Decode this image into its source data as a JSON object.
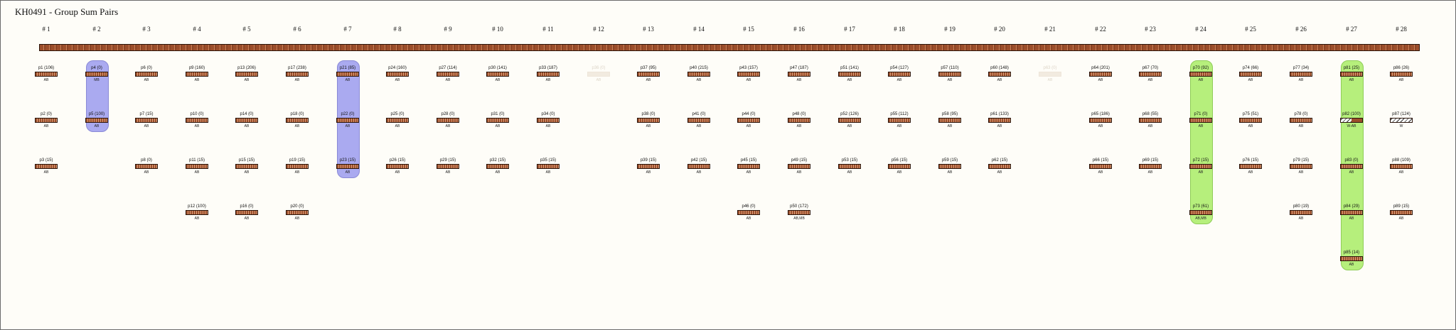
{
  "title": "KH0491 - Group Sum Pairs",
  "columns": [
    {
      "label": "# 1",
      "items": [
        {
          "label": "p1 (106)",
          "sub": "AB"
        },
        {
          "label": "p2 (0)",
          "sub": "AB"
        },
        {
          "label": "p3 (15)",
          "sub": "AB"
        }
      ]
    },
    {
      "label": "# 2",
      "items": [
        {
          "label": "p4 (0)",
          "sub": "MB"
        },
        {
          "label": "p5 (100)",
          "sub": "AB"
        }
      ],
      "highlight": "blue"
    },
    {
      "label": "# 3",
      "items": [
        {
          "label": "p6 (0)",
          "sub": "AB"
        },
        {
          "label": "p7 (15)",
          "sub": "AB"
        },
        {
          "label": "p8 (0)",
          "sub": "AB"
        }
      ]
    },
    {
      "label": "# 4",
      "items": [
        {
          "label": "p9 (160)",
          "sub": "AB"
        },
        {
          "label": "p10 (0)",
          "sub": "AB"
        },
        {
          "label": "p11 (15)",
          "sub": "AB"
        },
        {
          "label": "p12 (100)",
          "sub": "AB"
        }
      ]
    },
    {
      "label": "# 5",
      "items": [
        {
          "label": "p13 (206)",
          "sub": "AB"
        },
        {
          "label": "p14 (0)",
          "sub": "AB"
        },
        {
          "label": "p15 (15)",
          "sub": "AB"
        },
        {
          "label": "p16 (0)",
          "sub": "AB"
        }
      ]
    },
    {
      "label": "# 6",
      "items": [
        {
          "label": "p17 (238)",
          "sub": "AB"
        },
        {
          "label": "p18 (0)",
          "sub": "AB"
        },
        {
          "label": "p19 (15)",
          "sub": "AB"
        },
        {
          "label": "p20 (0)",
          "sub": "AB"
        }
      ]
    },
    {
      "label": "# 7",
      "items": [
        {
          "label": "p21 (85)",
          "sub": "AB"
        },
        {
          "label": "p22 (0)",
          "sub": "AB"
        },
        {
          "label": "p23 (15)",
          "sub": "AB"
        }
      ],
      "highlight": "blue"
    },
    {
      "label": "# 8",
      "items": [
        {
          "label": "p24 (160)",
          "sub": "AB"
        },
        {
          "label": "p25 (0)",
          "sub": "AB"
        },
        {
          "label": "p26 (15)",
          "sub": "AB"
        }
      ]
    },
    {
      "label": "# 9",
      "items": [
        {
          "label": "p27 (114)",
          "sub": "AB"
        },
        {
          "label": "p28 (0)",
          "sub": "AB"
        },
        {
          "label": "p29 (15)",
          "sub": "AB"
        }
      ]
    },
    {
      "label": "# 10",
      "items": [
        {
          "label": "p30 (141)",
          "sub": "AB"
        },
        {
          "label": "p31 (0)",
          "sub": "AB"
        },
        {
          "label": "p32 (15)",
          "sub": "AB"
        }
      ]
    },
    {
      "label": "# 11",
      "items": [
        {
          "label": "p33 (187)",
          "sub": "AB"
        },
        {
          "label": "p34 (0)",
          "sub": "AB"
        },
        {
          "label": "p35 (15)",
          "sub": "AB"
        }
      ]
    },
    {
      "label": "# 12",
      "items": [
        {
          "label": "p36 (0)",
          "sub": "AB",
          "faded": true
        }
      ]
    },
    {
      "label": "# 13",
      "items": [
        {
          "label": "p37 (95)",
          "sub": "AB"
        },
        {
          "label": "p38 (0)",
          "sub": "AB"
        },
        {
          "label": "p39 (15)",
          "sub": "AB"
        }
      ]
    },
    {
      "label": "# 14",
      "items": [
        {
          "label": "p40 (215)",
          "sub": "AB"
        },
        {
          "label": "p41 (0)",
          "sub": "AB"
        },
        {
          "label": "p42 (15)",
          "sub": "AB"
        }
      ]
    },
    {
      "label": "# 15",
      "items": [
        {
          "label": "p43 (157)",
          "sub": "AB"
        },
        {
          "label": "p44 (0)",
          "sub": "AB"
        },
        {
          "label": "p45 (15)",
          "sub": "AB"
        },
        {
          "label": "p46 (0)",
          "sub": "AB"
        }
      ]
    },
    {
      "label": "# 16",
      "items": [
        {
          "label": "p47 (187)",
          "sub": "AB"
        },
        {
          "label": "p48 (0)",
          "sub": "AB"
        },
        {
          "label": "p49 (15)",
          "sub": "AB"
        },
        {
          "label": "p50 (172)",
          "sub": "AB,MB"
        }
      ]
    },
    {
      "label": "# 17",
      "items": [
        {
          "label": "p51 (141)",
          "sub": "AB"
        },
        {
          "label": "p52 (126)",
          "sub": "AB"
        },
        {
          "label": "p53 (15)",
          "sub": "AB"
        }
      ]
    },
    {
      "label": "# 18",
      "items": [
        {
          "label": "p54 (127)",
          "sub": "AB"
        },
        {
          "label": "p55 (112)",
          "sub": "AB"
        },
        {
          "label": "p56 (15)",
          "sub": "AB"
        }
      ]
    },
    {
      "label": "# 19",
      "items": [
        {
          "label": "p57 (110)",
          "sub": "AB"
        },
        {
          "label": "p58 (95)",
          "sub": "AB"
        },
        {
          "label": "p59 (15)",
          "sub": "AB"
        }
      ]
    },
    {
      "label": "# 20",
      "items": [
        {
          "label": "p60 (148)",
          "sub": "AB"
        },
        {
          "label": "p61 (133)",
          "sub": "AB"
        },
        {
          "label": "p62 (15)",
          "sub": "AB"
        }
      ]
    },
    {
      "label": "# 21",
      "items": [
        {
          "label": "p63 (0)",
          "sub": "AB",
          "faded": true
        }
      ]
    },
    {
      "label": "# 22",
      "items": [
        {
          "label": "p64 (201)",
          "sub": "AB"
        },
        {
          "label": "p65 (186)",
          "sub": "AB"
        },
        {
          "label": "p66 (15)",
          "sub": "AB"
        }
      ]
    },
    {
      "label": "# 23",
      "items": [
        {
          "label": "p67 (70)",
          "sub": "AB"
        },
        {
          "label": "p68 (55)",
          "sub": "AB"
        },
        {
          "label": "p69 (15)",
          "sub": "AB"
        }
      ]
    },
    {
      "label": "# 24",
      "items": [
        {
          "label": "p70 (92)",
          "sub": "AB"
        },
        {
          "label": "p71 (0)",
          "sub": "AB"
        },
        {
          "label": "p72 (15)",
          "sub": "AB"
        },
        {
          "label": "p73 (61)",
          "sub": "AB,MB"
        }
      ],
      "highlight": "green"
    },
    {
      "label": "# 25",
      "items": [
        {
          "label": "p74 (66)",
          "sub": "AB"
        },
        {
          "label": "p75 (51)",
          "sub": "AB"
        },
        {
          "label": "p76 (15)",
          "sub": "AB"
        }
      ]
    },
    {
      "label": "# 26",
      "items": [
        {
          "label": "p77 (34)",
          "sub": "AB"
        },
        {
          "label": "p78 (0)",
          "sub": "AB"
        },
        {
          "label": "p79 (15)",
          "sub": "AB"
        },
        {
          "label": "p80 (19)",
          "sub": "AB"
        }
      ]
    },
    {
      "label": "# 27",
      "items": [
        {
          "label": "p81 (25)",
          "sub": "AB"
        },
        {
          "label": "p82 (100)",
          "sub": "W-AB",
          "style": "wab"
        },
        {
          "label": "p83 (0)",
          "sub": "AB"
        },
        {
          "label": "p84 (29)",
          "sub": "AB"
        },
        {
          "label": "p85 (14)",
          "sub": "AB"
        }
      ],
      "highlight": "green"
    },
    {
      "label": "# 28",
      "items": [
        {
          "label": "p86 (26)",
          "sub": "AB"
        },
        {
          "label": "p87 (124)",
          "sub": "W",
          "style": "w"
        },
        {
          "label": "p88 (109)",
          "sub": "AB"
        },
        {
          "label": "p89 (15)",
          "sub": "AB"
        }
      ]
    }
  ]
}
